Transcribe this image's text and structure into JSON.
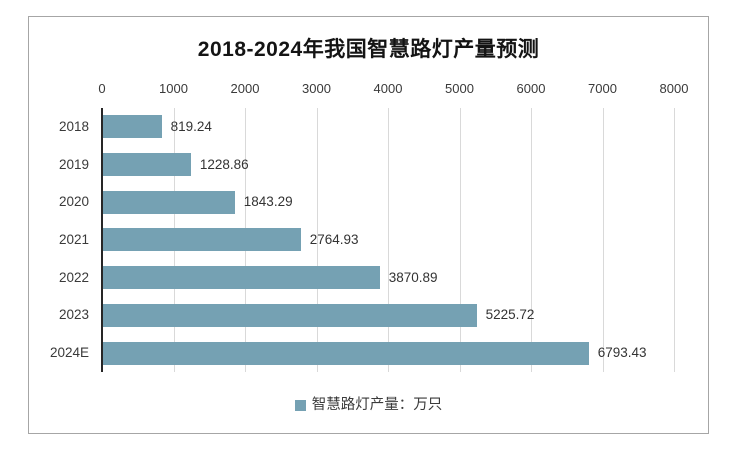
{
  "chart_data": {
    "type": "bar",
    "orientation": "horizontal",
    "title": "2018-2024年我国智慧路灯产量预测",
    "categories": [
      "2018",
      "2019",
      "2020",
      "2021",
      "2022",
      "2023",
      "2024E"
    ],
    "values": [
      819.24,
      1228.86,
      1843.29,
      2764.93,
      3870.89,
      5225.72,
      6793.43
    ],
    "value_labels": [
      "819.24",
      "1228.86",
      "1843.29",
      "2764.93",
      "3870.89",
      "5225.72",
      "6793.43"
    ],
    "x_axis": {
      "position": "top",
      "min": 0,
      "max": 8000,
      "tick_interval": 1000,
      "ticks": [
        "0",
        "1000",
        "2000",
        "3000",
        "4000",
        "5000",
        "6000",
        "7000",
        "8000"
      ]
    },
    "xlabel": "",
    "ylabel": "",
    "grid": true,
    "legend": {
      "position": "bottom",
      "marker": "square",
      "label": "智慧路灯产量：万只"
    },
    "colors": {
      "bar": "#75A1B3",
      "gridline": "#d9d9d9",
      "axis_line": "#262626",
      "text": "#3a3a3a",
      "title": "#141414",
      "frame_border": "#a6a6a6",
      "background": "#ffffff"
    }
  }
}
